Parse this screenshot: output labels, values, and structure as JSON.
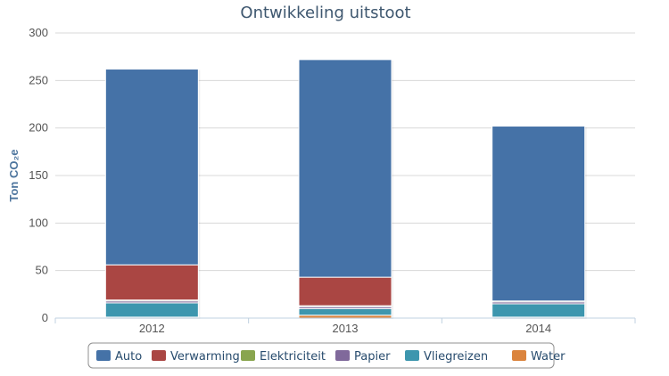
{
  "chart_data": {
    "type": "bar",
    "stacked": true,
    "title": "Ontwikkeling uitstoot",
    "ylabel": "Ton CO₂e",
    "xlabel": "",
    "ylim": [
      0,
      300
    ],
    "yticks": [
      0,
      50,
      100,
      150,
      200,
      250,
      300
    ],
    "categories": [
      "2012",
      "2013",
      "2014"
    ],
    "series": [
      {
        "name": "Auto",
        "color": "#4572a7",
        "values": [
          206,
          229,
          184
        ]
      },
      {
        "name": "Verwarming",
        "color": "#aa4643",
        "values": [
          37,
          30,
          0
        ]
      },
      {
        "name": "Elektriciteit",
        "color": "#89a54e",
        "values": [
          1,
          1,
          1
        ]
      },
      {
        "name": "Papier",
        "color": "#80699b",
        "values": [
          2,
          2,
          2
        ]
      },
      {
        "name": "Vliegreizen",
        "color": "#3d96ae",
        "values": [
          15,
          7,
          14
        ]
      },
      {
        "name": "Water",
        "color": "#db843d",
        "values": [
          1,
          3,
          1
        ]
      }
    ],
    "grid": true,
    "legend_position": "bottom"
  }
}
